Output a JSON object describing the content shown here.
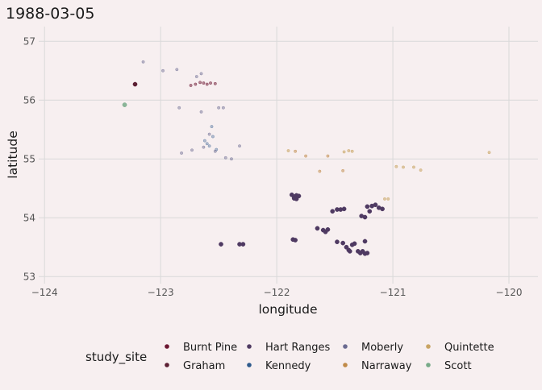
{
  "chart_data": {
    "type": "scatter",
    "title": "1988-03-05",
    "xlabel": "longitude",
    "ylabel": "latitude",
    "xlim": [
      -124.05,
      -119.75
    ],
    "ylim": [
      52.88,
      57.25
    ],
    "x_ticks": [
      -124,
      -123,
      -122,
      -121,
      -120
    ],
    "x_tick_labels": [
      "−124",
      "−123",
      "−122",
      "−121",
      "−120"
    ],
    "y_ticks": [
      53,
      54,
      55,
      56,
      57
    ],
    "y_tick_labels": [
      "53",
      "54",
      "55",
      "56",
      "57"
    ],
    "grid": true,
    "legend_title": "study_site",
    "legend_position": "bottom",
    "series": [
      {
        "name": "Burnt Pine",
        "color": "#6b1530",
        "opacity": 0.5,
        "points": [
          [
            -122.74,
            56.25
          ],
          [
            -122.7,
            56.27
          ],
          [
            -122.66,
            56.3
          ],
          [
            -122.63,
            56.29
          ],
          [
            -122.6,
            56.27
          ],
          [
            -122.57,
            56.29
          ],
          [
            -122.53,
            56.28
          ]
        ]
      },
      {
        "name": "Graham",
        "color": "#5c1f33",
        "opacity": 1,
        "points": [
          [
            -123.22,
            56.27
          ]
        ]
      },
      {
        "name": "Hart Ranges",
        "color": "#4f3a62",
        "opacity": 1,
        "points": [
          [
            -122.48,
            53.55
          ],
          [
            -122.32,
            53.55
          ],
          [
            -122.29,
            53.55
          ],
          [
            -121.87,
            54.39
          ],
          [
            -121.85,
            54.36
          ],
          [
            -121.83,
            54.38
          ],
          [
            -121.81,
            54.37
          ],
          [
            -121.85,
            54.33
          ],
          [
            -121.83,
            54.32
          ],
          [
            -121.86,
            53.63
          ],
          [
            -121.84,
            53.62
          ],
          [
            -121.65,
            53.82
          ],
          [
            -121.6,
            53.79
          ],
          [
            -121.58,
            53.76
          ],
          [
            -121.56,
            53.8
          ],
          [
            -121.52,
            54.11
          ],
          [
            -121.48,
            54.14
          ],
          [
            -121.45,
            54.14
          ],
          [
            -121.42,
            54.15
          ],
          [
            -121.48,
            53.59
          ],
          [
            -121.43,
            53.57
          ],
          [
            -121.4,
            53.5
          ],
          [
            -121.38,
            53.45
          ],
          [
            -121.37,
            53.43
          ],
          [
            -121.35,
            53.54
          ],
          [
            -121.33,
            53.56
          ],
          [
            -121.3,
            53.43
          ],
          [
            -121.28,
            53.4
          ],
          [
            -121.26,
            53.43
          ],
          [
            -121.24,
            53.39
          ],
          [
            -121.22,
            53.4
          ],
          [
            -121.27,
            54.03
          ],
          [
            -121.24,
            54.01
          ],
          [
            -121.22,
            54.19
          ],
          [
            -121.2,
            54.11
          ],
          [
            -121.18,
            54.2
          ],
          [
            -121.15,
            54.22
          ],
          [
            -121.12,
            54.17
          ],
          [
            -121.09,
            54.15
          ],
          [
            -121.24,
            53.6
          ]
        ]
      },
      {
        "name": "Kennedy",
        "color": "#2e5a8c",
        "opacity": 0.35,
        "points": [
          [
            -122.56,
            55.55
          ],
          [
            -122.55,
            55.38
          ],
          [
            -122.6,
            55.26
          ],
          [
            -122.62,
            55.31
          ],
          [
            -122.58,
            55.22
          ],
          [
            -122.52,
            55.16
          ]
        ]
      },
      {
        "name": "Moberly",
        "color": "#6a6a90",
        "opacity": 0.45,
        "points": [
          [
            -123.15,
            56.65
          ],
          [
            -122.98,
            56.5
          ],
          [
            -122.86,
            56.52
          ],
          [
            -122.69,
            56.4
          ],
          [
            -122.65,
            56.45
          ],
          [
            -122.84,
            55.87
          ],
          [
            -122.82,
            55.1
          ],
          [
            -122.73,
            55.15
          ],
          [
            -122.65,
            55.8
          ],
          [
            -122.5,
            55.87
          ],
          [
            -122.46,
            55.87
          ],
          [
            -122.63,
            55.2
          ],
          [
            -122.58,
            55.42
          ],
          [
            -122.53,
            55.13
          ],
          [
            -122.44,
            55.02
          ],
          [
            -122.39,
            55.0
          ],
          [
            -122.32,
            55.22
          ]
        ]
      },
      {
        "name": "Narraway",
        "color": "#c08a48",
        "opacity": 0.5,
        "points": [
          [
            -121.84,
            55.13
          ],
          [
            -121.75,
            55.05
          ],
          [
            -121.63,
            54.79
          ],
          [
            -121.56,
            55.05
          ],
          [
            -121.43,
            54.8
          ]
        ]
      },
      {
        "name": "Quintette",
        "color": "#c9a463",
        "opacity": 0.55,
        "points": [
          [
            -121.9,
            55.14
          ],
          [
            -121.42,
            55.12
          ],
          [
            -121.38,
            55.14
          ],
          [
            -121.35,
            55.13
          ],
          [
            -121.07,
            54.32
          ],
          [
            -121.04,
            54.32
          ],
          [
            -120.97,
            54.87
          ],
          [
            -120.91,
            54.86
          ],
          [
            -120.82,
            54.86
          ],
          [
            -120.76,
            54.81
          ],
          [
            -120.17,
            55.11
          ]
        ]
      },
      {
        "name": "Scott",
        "color": "#77aa88",
        "opacity": 0.85,
        "points": [
          [
            -123.31,
            55.92
          ]
        ]
      }
    ]
  }
}
